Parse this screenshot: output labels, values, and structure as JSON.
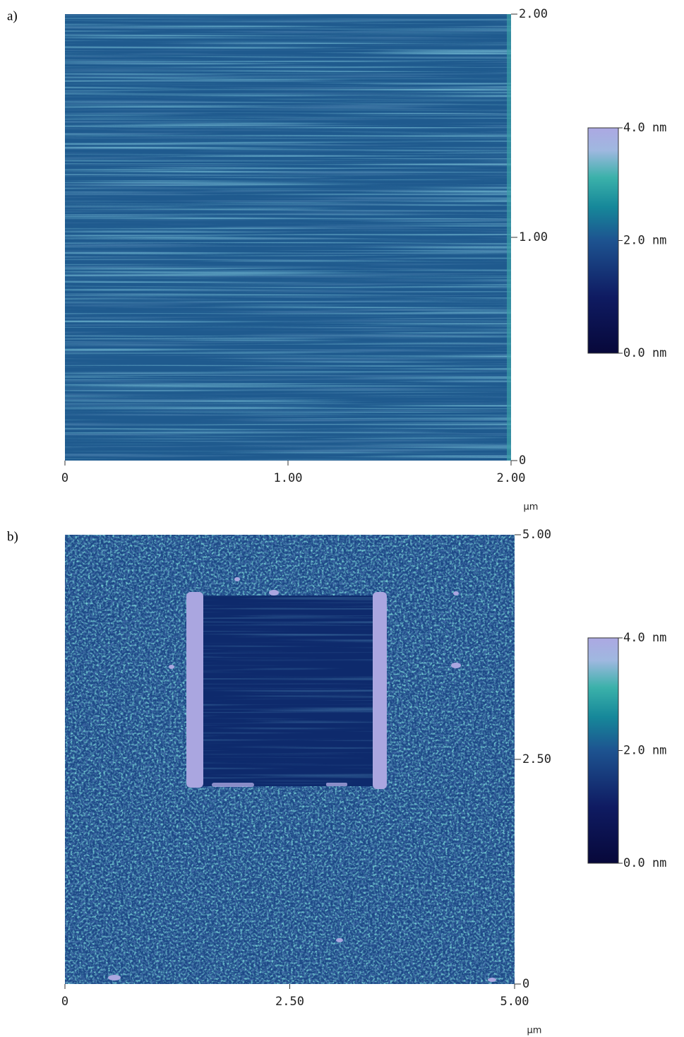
{
  "chart_data": [
    {
      "type": "image",
      "panel_label": "a)",
      "xlim": [
        0,
        2
      ],
      "xticks": [
        0,
        {
          "value": 1,
          "label": "1.00"
        },
        {
          "value": 2,
          "label": "2.00"
        }
      ],
      "ylim": [
        0,
        2
      ],
      "yticks": [
        0,
        {
          "value": 1,
          "label": "1.00"
        },
        {
          "value": 2,
          "label": "2.00"
        }
      ],
      "x_unit": "µm",
      "colorbar": {
        "lim": [
          0,
          4
        ],
        "ticks": [
          {
            "value": 0,
            "label": "0.0 nm"
          },
          {
            "value": 2,
            "label": "2.0 nm"
          },
          {
            "value": 4,
            "label": "4.0 nm"
          }
        ]
      }
    },
    {
      "type": "image",
      "panel_label": "b)",
      "xlim": [
        0,
        5
      ],
      "xticks": [
        0,
        {
          "value": 2.5,
          "label": "2.50"
        },
        {
          "value": 5,
          "label": "5.00"
        }
      ],
      "ylim": [
        0,
        5
      ],
      "yticks": [
        0,
        {
          "value": 2.5,
          "label": "2.50"
        },
        {
          "value": 5,
          "label": "5.00"
        }
      ],
      "x_unit": "µm",
      "colorbar": {
        "lim": [
          0,
          4
        ],
        "ticks": [
          {
            "value": 0,
            "label": "0.0 nm"
          },
          {
            "value": 2,
            "label": "2.0 nm"
          },
          {
            "value": 4,
            "label": "4.0 nm"
          }
        ]
      }
    }
  ]
}
